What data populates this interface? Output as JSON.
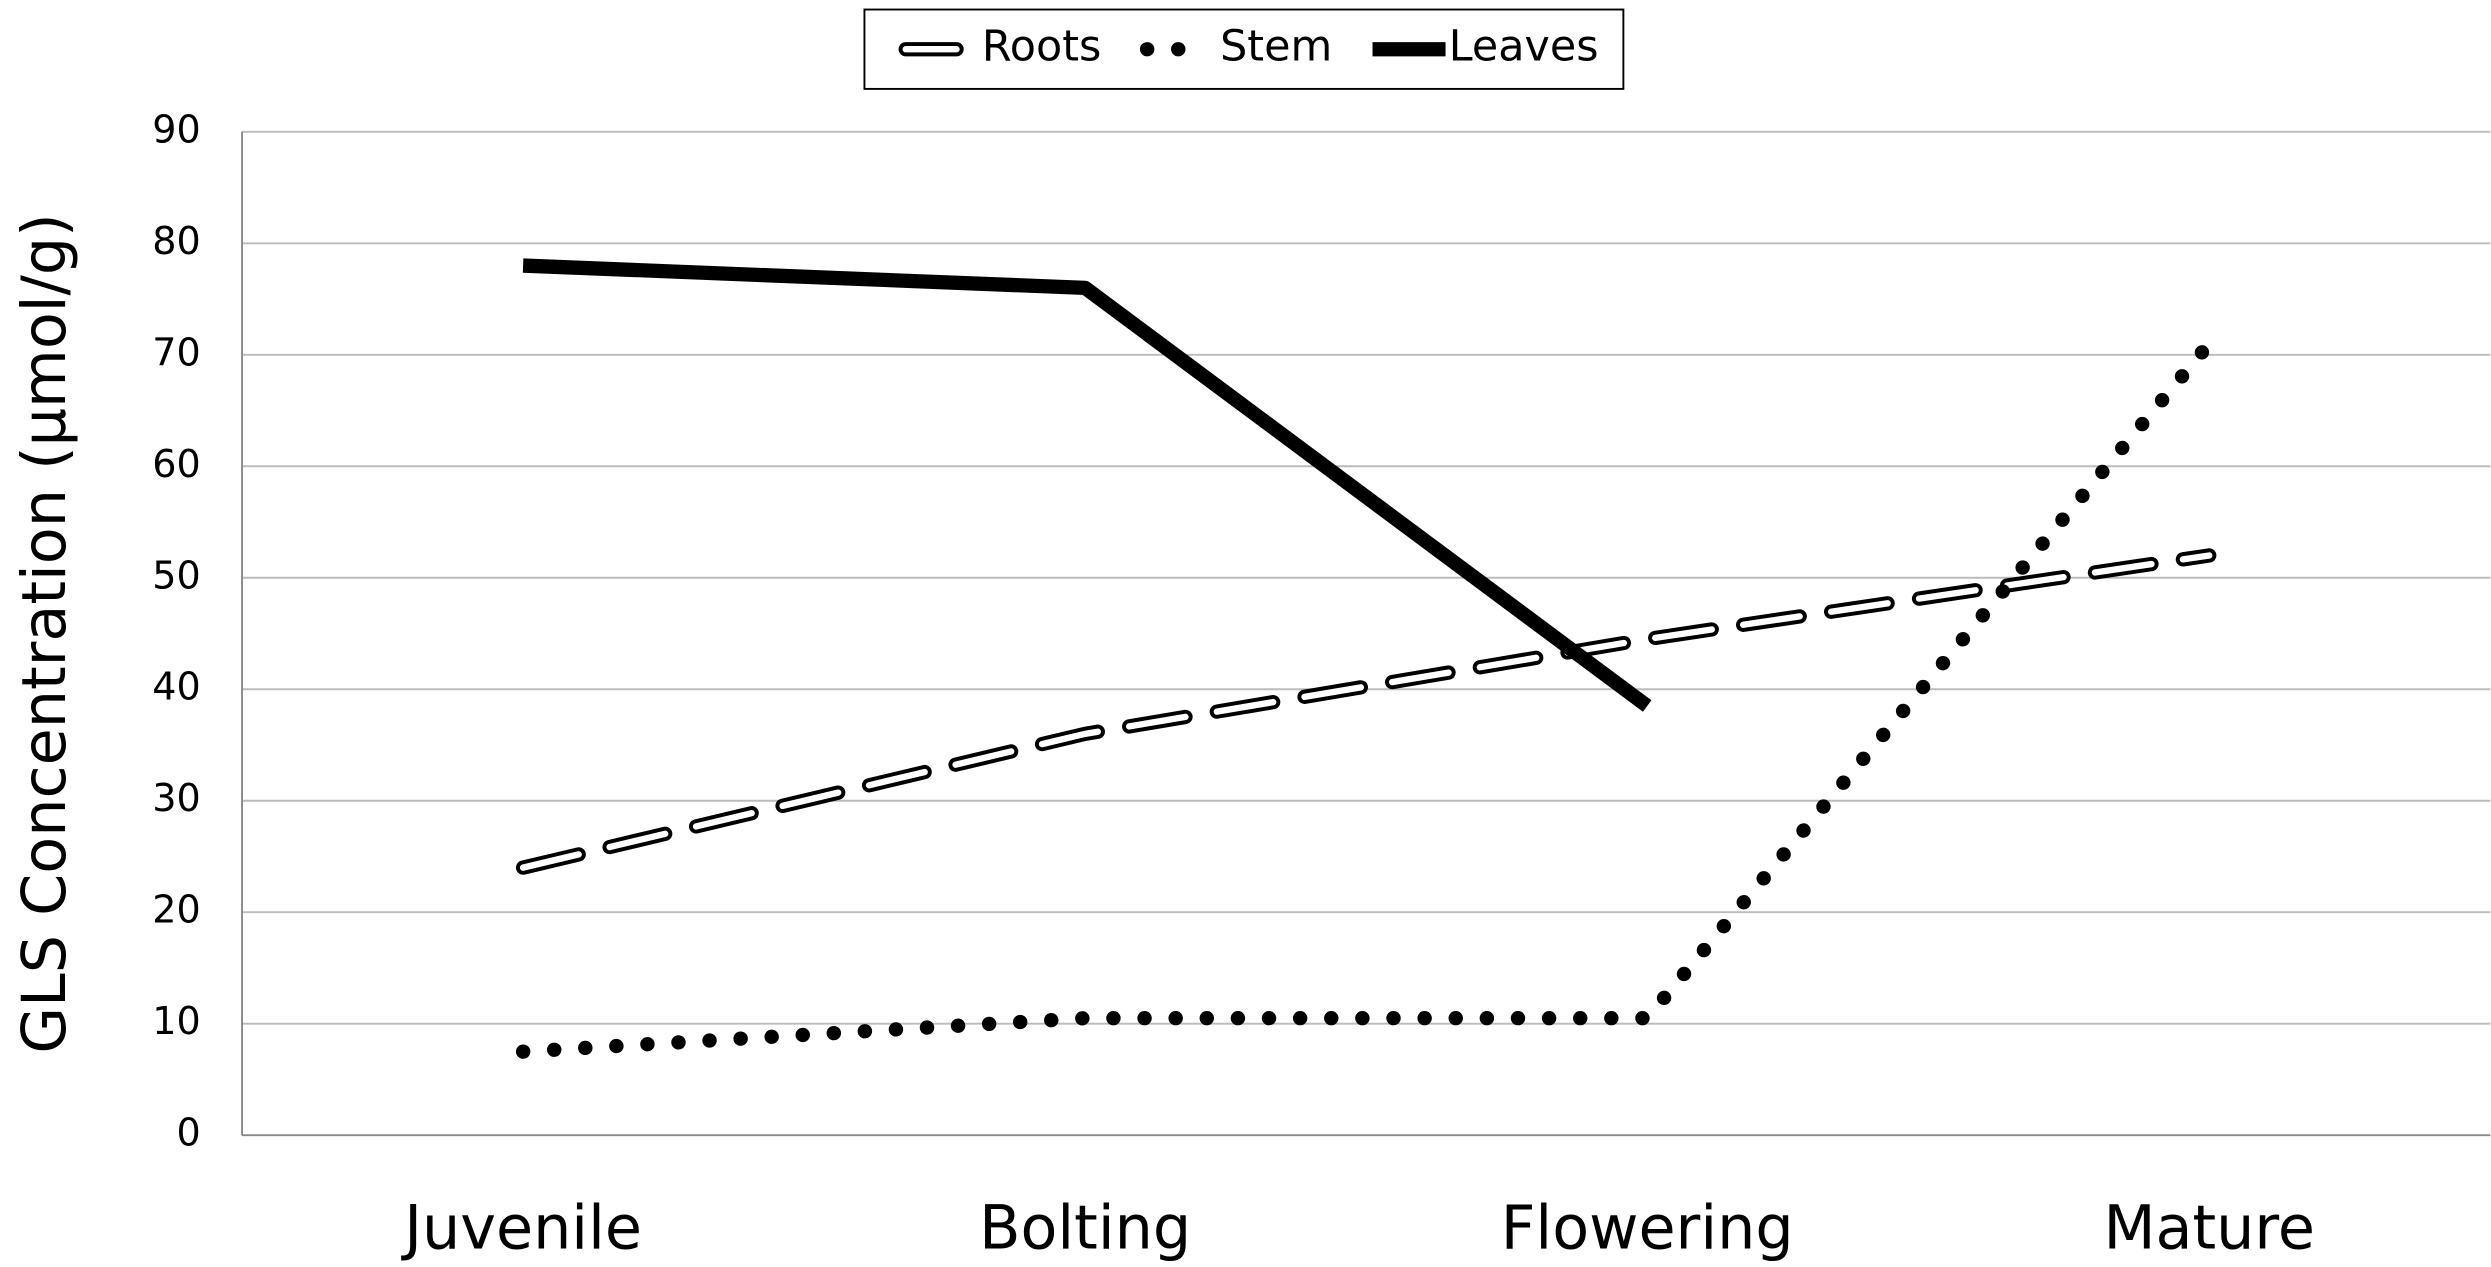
{
  "chart_data": {
    "type": "line",
    "ylabel": "GLS Concentration (µmol/g)",
    "categories": [
      "Juvenile",
      "Bolting",
      "Flowering",
      "Mature"
    ],
    "series": [
      {
        "name": "Roots",
        "color": "#000000",
        "style": "double-dashed",
        "values": [
          24,
          36,
          44.5,
          52
        ]
      },
      {
        "name": "Stem",
        "color": "#000000",
        "style": "dotted",
        "values": [
          7.5,
          10.5,
          10.5,
          71
        ]
      },
      {
        "name": "Leaves",
        "color": "#000000",
        "style": "solid",
        "values": [
          78,
          76,
          38.5,
          null
        ]
      }
    ],
    "ylim": [
      0,
      90
    ],
    "yticks": [
      0,
      10,
      20,
      30,
      40,
      50,
      60,
      70,
      80,
      90
    ],
    "grid": true,
    "legend": "top"
  }
}
